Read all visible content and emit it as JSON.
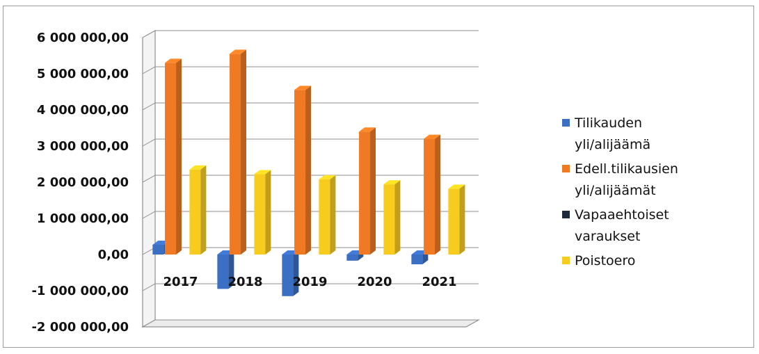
{
  "chart_data": {
    "type": "bar",
    "title": "",
    "xlabel": "",
    "ylabel": "",
    "categories": [
      "2017",
      "2018",
      "2019",
      "2020",
      "2021"
    ],
    "ylim": [
      -2000000,
      6000000
    ],
    "yticks": [
      -2000000,
      -1000000,
      0,
      1000000,
      2000000,
      3000000,
      4000000,
      5000000,
      6000000
    ],
    "ytick_labels": [
      "-2 000 000,00",
      "-1 000 000,00",
      "0,00",
      "1 000 000,00",
      "2 000 000,00",
      "3 000 000,00",
      "4 000 000,00",
      "5 000 000,00",
      "6 000 000,00"
    ],
    "grid": true,
    "legend_position": "right",
    "series": [
      {
        "name": "Tilikauden yli/alijäämä",
        "legend_lines": [
          "Tilikauden",
          "yli/alijäämä"
        ],
        "color": "#3a6fc4",
        "values": [
          270000,
          -950000,
          -1150000,
          -170000,
          -270000
        ]
      },
      {
        "name": "Edell.tilikausien yli/alijäämät",
        "legend_lines": [
          "Edell.tilikausien",
          "yli/alijäämät"
        ],
        "color": "#f07a24",
        "values": [
          5300000,
          5550000,
          4550000,
          3400000,
          3200000
        ]
      },
      {
        "name": "Vapaaehtoiset varaukset",
        "legend_lines": [
          "Vapaaehtoiset",
          "varaukset"
        ],
        "color": "#1c2a3a",
        "values": [
          0,
          0,
          0,
          0,
          0
        ]
      },
      {
        "name": "Poistoero",
        "legend_lines": [
          "Poistoero"
        ],
        "color": "#f7cc1f",
        "values": [
          2350000,
          2220000,
          2080000,
          1940000,
          1820000
        ]
      }
    ]
  }
}
